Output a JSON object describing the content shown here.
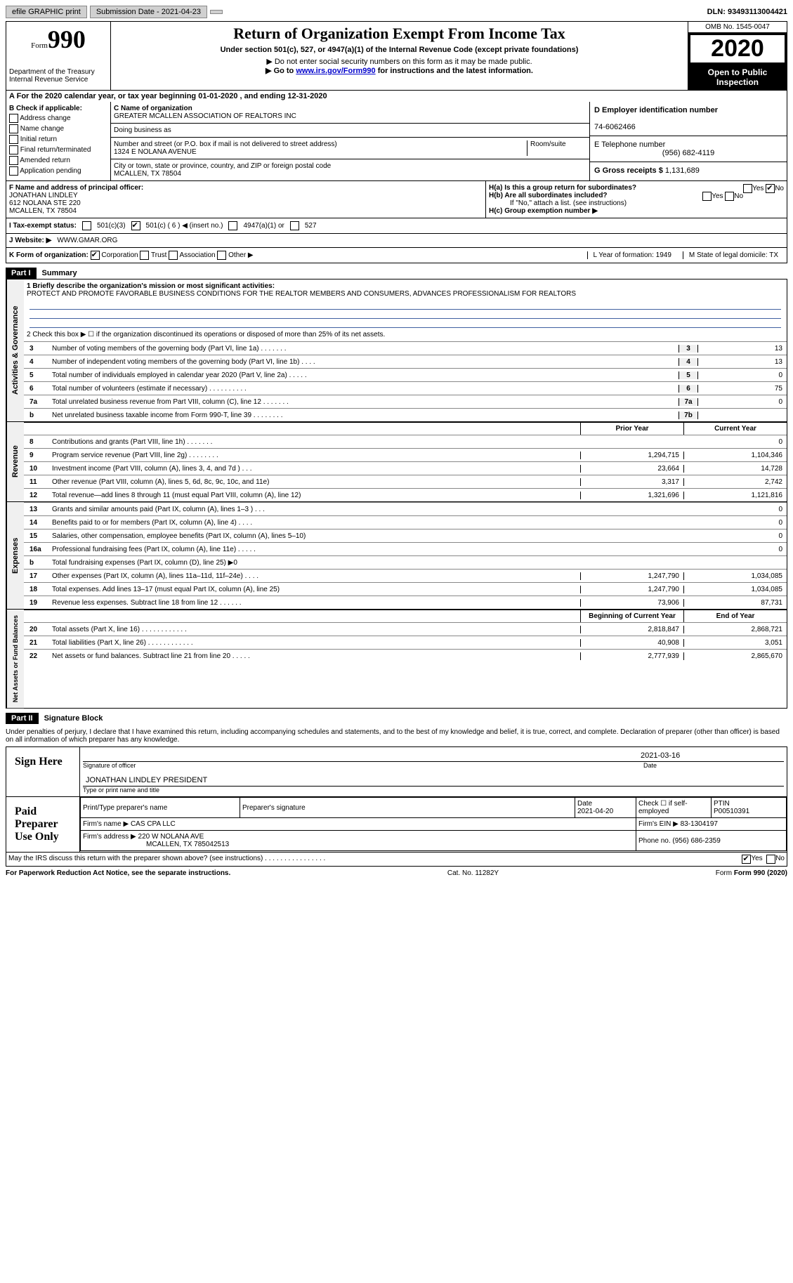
{
  "topbar": {
    "efile": "efile GRAPHIC print",
    "submission": "Submission Date - 2021-04-23",
    "dln": "DLN: 93493113004421"
  },
  "header": {
    "form_label": "Form",
    "form_num": "990",
    "dept": "Department of the Treasury\nInternal Revenue Service",
    "title": "Return of Organization Exempt From Income Tax",
    "subtitle": "Under section 501(c), 527, or 4947(a)(1) of the Internal Revenue Code (except private foundations)",
    "note1": "▶ Do not enter social security numbers on this form as it may be made public.",
    "note2_pre": "▶ Go to ",
    "note2_link": "www.irs.gov/Form990",
    "note2_post": " for instructions and the latest information.",
    "omb": "OMB No. 1545-0047",
    "year": "2020",
    "inspect": "Open to Public Inspection"
  },
  "tax_year": "For the 2020 calendar year, or tax year beginning 01-01-2020   , and ending 12-31-2020",
  "section_b": {
    "title": "B Check if applicable:",
    "opts": [
      "Address change",
      "Name change",
      "Initial return",
      "Final return/terminated",
      "Amended return",
      "Application pending"
    ]
  },
  "section_c": {
    "label": "C Name of organization",
    "name": "GREATER MCALLEN ASSOCIATION OF REALTORS INC",
    "dba_label": "Doing business as",
    "addr_label": "Number and street (or P.O. box if mail is not delivered to street address)",
    "room_label": "Room/suite",
    "addr": "1324 E NOLANA AVENUE",
    "city_label": "City or town, state or province, country, and ZIP or foreign postal code",
    "city": "MCALLEN, TX   78504"
  },
  "section_d": {
    "label": "D Employer identification number",
    "ein": "74-6062466"
  },
  "section_e": {
    "label": "E Telephone number",
    "phone": "(956) 682-4119"
  },
  "section_g": {
    "label": "G Gross receipts $",
    "val": "1,131,689"
  },
  "section_f": {
    "label": "F  Name and address of principal officer:",
    "name": "JONATHAN LINDLEY",
    "addr1": "612 NOLANA STE 220",
    "addr2": "MCALLEN, TX   78504"
  },
  "section_h": {
    "ha": "H(a)  Is this a group return for subordinates?",
    "hb": "H(b)  Are all subordinates included?",
    "hb_note": "If \"No,\" attach a list. (see instructions)",
    "hc": "H(c)  Group exemption number ▶",
    "yes": "Yes",
    "no": "No"
  },
  "section_i": {
    "label": "I   Tax-exempt status:",
    "opts": [
      "501(c)(3)",
      "501(c) ( 6 ) ◀ (insert no.)",
      "4947(a)(1) or",
      "527"
    ]
  },
  "section_j": {
    "label": "J   Website: ▶",
    "val": "WWW.GMAR.ORG"
  },
  "section_k": {
    "label": "K Form of organization:",
    "opts": [
      "Corporation",
      "Trust",
      "Association",
      "Other ▶"
    ]
  },
  "section_l": {
    "label": "L Year of formation: 1949"
  },
  "section_m": {
    "label": "M State of legal domicile: TX"
  },
  "part1": {
    "header": "Part I",
    "title": "Summary",
    "q1": "1   Briefly describe the organization's mission or most significant activities:",
    "mission": "PROTECT AND PROMOTE FAVORABLE BUSINESS CONDITIONS FOR THE REALTOR MEMBERS AND CONSUMERS, ADVANCES PROFESSIONALISM FOR REALTORS",
    "q2": "2   Check this box ▶ ☐  if the organization discontinued its operations or disposed of more than 25% of its net assets.",
    "side_a": "Activities & Governance",
    "side_r": "Revenue",
    "side_e": "Expenses",
    "side_n": "Net Assets or Fund Balances",
    "rows_a": [
      {
        "n": "3",
        "d": "Number of voting members of the governing body (Part VI, line 1a)   .    .    .    .    .    .    .",
        "b": "3",
        "v": "13"
      },
      {
        "n": "4",
        "d": "Number of independent voting members of the governing body (Part VI, line 1b)    .    .    .    .",
        "b": "4",
        "v": "13"
      },
      {
        "n": "5",
        "d": "Total number of individuals employed in calendar year 2020 (Part V, line 2a)    .    .    .    .    .",
        "b": "5",
        "v": "0"
      },
      {
        "n": "6",
        "d": "Total number of volunteers (estimate if necessary)    .    .    .    .    .    .    .    .    .    .",
        "b": "6",
        "v": "75"
      },
      {
        "n": "7a",
        "d": "Total unrelated business revenue from Part VIII, column (C), line 12   .    .    .    .    .    .    .",
        "b": "7a",
        "v": "0"
      },
      {
        "n": "b",
        "d": "Net unrelated business taxable income from Form 990-T, line 39   .    .    .    .    .    .    .    .",
        "b": "7b",
        "v": ""
      }
    ],
    "prior_h": "Prior Year",
    "curr_h": "Current Year",
    "rows_r": [
      {
        "n": "8",
        "d": "Contributions and grants (Part VIII, line 1h)    .    .    .    .    .    .    .",
        "p": "",
        "c": "0"
      },
      {
        "n": "9",
        "d": "Program service revenue (Part VIII, line 2g)    .    .    .    .    .    .    .    .",
        "p": "1,294,715",
        "c": "1,104,346"
      },
      {
        "n": "10",
        "d": "Investment income (Part VIII, column (A), lines 3, 4, and 7d )    .    .    .",
        "p": "23,664",
        "c": "14,728"
      },
      {
        "n": "11",
        "d": "Other revenue (Part VIII, column (A), lines 5, 6d, 8c, 9c, 10c, and 11e)",
        "p": "3,317",
        "c": "2,742"
      },
      {
        "n": "12",
        "d": "Total revenue—add lines 8 through 11 (must equal Part VIII, column (A), line 12)",
        "p": "1,321,696",
        "c": "1,121,816"
      }
    ],
    "rows_e": [
      {
        "n": "13",
        "d": "Grants and similar amounts paid (Part IX, column (A), lines 1–3 )    .    .    .",
        "p": "",
        "c": "0"
      },
      {
        "n": "14",
        "d": "Benefits paid to or for members (Part IX, column (A), line 4)    .    .    .    .",
        "p": "",
        "c": "0"
      },
      {
        "n": "15",
        "d": "Salaries, other compensation, employee benefits (Part IX, column (A), lines 5–10)",
        "p": "",
        "c": "0"
      },
      {
        "n": "16a",
        "d": "Professional fundraising fees (Part IX, column (A), line 11e)    .    .    .    .    .",
        "p": "",
        "c": "0"
      },
      {
        "n": "b",
        "d": "Total fundraising expenses (Part IX, column (D), line 25) ▶0",
        "p": "shaded",
        "c": "shaded"
      },
      {
        "n": "17",
        "d": "Other expenses (Part IX, column (A), lines 11a–11d, 11f–24e)    .    .    .    .",
        "p": "1,247,790",
        "c": "1,034,085"
      },
      {
        "n": "18",
        "d": "Total expenses. Add lines 13–17 (must equal Part IX, column (A), line 25)",
        "p": "1,247,790",
        "c": "1,034,085"
      },
      {
        "n": "19",
        "d": "Revenue less expenses. Subtract line 18 from line 12   .    .    .    .    .    .",
        "p": "73,906",
        "c": "87,731"
      }
    ],
    "begin_h": "Beginning of Current Year",
    "end_h": "End of Year",
    "rows_n": [
      {
        "n": "20",
        "d": "Total assets (Part X, line 16)   .    .    .    .    .    .    .    .    .    .    .    .",
        "p": "2,818,847",
        "c": "2,868,721"
      },
      {
        "n": "21",
        "d": "Total liabilities (Part X, line 26)   .    .    .    .    .    .    .    .    .    .    .    .",
        "p": "40,908",
        "c": "3,051"
      },
      {
        "n": "22",
        "d": "Net assets or fund balances. Subtract line 21 from line 20   .    .    .    .    .",
        "p": "2,777,939",
        "c": "2,865,670"
      }
    ]
  },
  "part2": {
    "header": "Part II",
    "title": "Signature Block",
    "decl": "Under penalties of perjury, I declare that I have examined this return, including accompanying schedules and statements, and to the best of my knowledge and belief, it is true, correct, and complete. Declaration of preparer (other than officer) is based on all information of which preparer has any knowledge.",
    "sign_here": "Sign Here",
    "sig_officer": "Signature of officer",
    "sig_date": "2021-03-16",
    "date_l": "Date",
    "officer_name": "JONATHAN LINDLEY PRESIDENT",
    "type_name": "Type or print name and title",
    "paid": "Paid Preparer Use Only",
    "prep_name_l": "Print/Type preparer's name",
    "prep_sig_l": "Preparer's signature",
    "prep_date_l": "Date",
    "prep_date": "2021-04-20",
    "self_emp": "Check ☐  if self-employed",
    "ptin_l": "PTIN",
    "ptin": "P00510391",
    "firm_name_l": "Firm's name    ▶",
    "firm_name": "CAS CPA LLC",
    "firm_ein_l": "Firm's EIN ▶",
    "firm_ein": "83-1304197",
    "firm_addr_l": "Firm's address ▶",
    "firm_addr": "220 W NOLANA AVE",
    "firm_city": "MCALLEN, TX   785042513",
    "firm_phone_l": "Phone no.",
    "firm_phone": "(956) 686-2359",
    "discuss": "May the IRS discuss this return with the preparer shown above? (see instructions)    .    .    .    .    .    .    .    .    .    .    .    .    .    .    .    .",
    "yes": "Yes",
    "no": "No"
  },
  "footer": {
    "pra": "For Paperwork Reduction Act Notice, see the separate instructions.",
    "cat": "Cat. No. 11282Y",
    "form": "Form 990 (2020)"
  }
}
